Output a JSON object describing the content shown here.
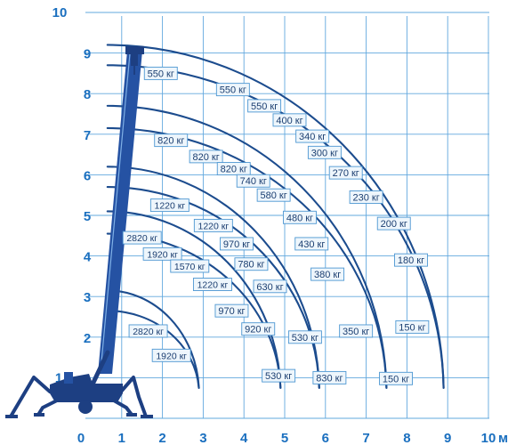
{
  "chart_data": {
    "type": "diagram",
    "x_axis": {
      "ticks": [
        "0",
        "1",
        "2",
        "3",
        "4",
        "5",
        "6",
        "7",
        "8",
        "9",
        "10"
      ],
      "unit": "м",
      "range": [
        0,
        10
      ]
    },
    "y_axis": {
      "ticks": [
        "1",
        "2",
        "3",
        "4",
        "5",
        "6",
        "7",
        "8",
        "9",
        "10"
      ],
      "range": [
        0,
        10
      ]
    },
    "envelopes": [
      {
        "reach": [
          0.65,
          3.15
        ],
        "base": 2.9
      },
      {
        "reach": [
          0.65,
          2.65
        ],
        "base": 2.9
      },
      {
        "reach": [
          0.65,
          4.55
        ],
        "base": 4.9
      },
      {
        "reach": [
          0.65,
          5.1
        ],
        "base": 4.9
      },
      {
        "reach": [
          0.65,
          5.7
        ],
        "base": 5.85
      },
      {
        "reach": [
          0.65,
          6.2
        ],
        "base": 5.85
      },
      {
        "reach": [
          0.65,
          7.15
        ],
        "base": 7.5
      },
      {
        "reach": [
          0.65,
          7.7
        ],
        "base": 7.5
      },
      {
        "reach": [
          0.65,
          8.7
        ],
        "base": 8.9
      },
      {
        "reach": [
          0.65,
          9.2
        ],
        "base": 8.9
      }
    ],
    "loads": [
      {
        "text": "550 кг",
        "x": 1.96,
        "y": 8.5
      },
      {
        "text": "550 кг",
        "x": 3.73,
        "y": 8.1
      },
      {
        "text": "550 кг",
        "x": 4.5,
        "y": 7.7
      },
      {
        "text": "400 кг",
        "x": 5.12,
        "y": 7.35
      },
      {
        "text": "340 кг",
        "x": 5.68,
        "y": 6.95
      },
      {
        "text": "300 кг",
        "x": 5.98,
        "y": 6.55
      },
      {
        "text": "820 кг",
        "x": 2.21,
        "y": 6.85
      },
      {
        "text": "820 кг",
        "x": 3.07,
        "y": 6.45
      },
      {
        "text": "820 кг",
        "x": 3.75,
        "y": 6.15
      },
      {
        "text": "740 кг",
        "x": 4.23,
        "y": 5.85
      },
      {
        "text": "580 кг",
        "x": 4.73,
        "y": 5.5
      },
      {
        "text": "270 кг",
        "x": 6.5,
        "y": 6.05
      },
      {
        "text": "230 кг",
        "x": 7.0,
        "y": 5.45
      },
      {
        "text": "1220 кг",
        "x": 2.18,
        "y": 5.25
      },
      {
        "text": "480 кг",
        "x": 5.37,
        "y": 4.95
      },
      {
        "text": "1220 кг",
        "x": 3.25,
        "y": 4.75
      },
      {
        "text": "200 кг",
        "x": 7.68,
        "y": 4.8
      },
      {
        "text": "970 кг",
        "x": 3.82,
        "y": 4.3
      },
      {
        "text": "430 кг",
        "x": 5.66,
        "y": 4.3
      },
      {
        "text": "2820 кг",
        "x": 1.5,
        "y": 4.45
      },
      {
        "text": "1920 кг",
        "x": 2.0,
        "y": 4.05
      },
      {
        "text": "1570 кг",
        "x": 2.67,
        "y": 3.75
      },
      {
        "text": "780 кг",
        "x": 4.18,
        "y": 3.8
      },
      {
        "text": "180 кг",
        "x": 8.1,
        "y": 3.9
      },
      {
        "text": "380 кг",
        "x": 6.05,
        "y": 3.55
      },
      {
        "text": "1220 кг",
        "x": 3.23,
        "y": 3.3
      },
      {
        "text": "630 кг",
        "x": 4.64,
        "y": 3.25
      },
      {
        "text": "970 кг",
        "x": 3.7,
        "y": 2.65
      },
      {
        "text": "920 кг",
        "x": 4.35,
        "y": 2.2
      },
      {
        "text": "530 кг",
        "x": 5.5,
        "y": 2.0
      },
      {
        "text": "350 кг",
        "x": 6.75,
        "y": 2.15
      },
      {
        "text": "150 кг",
        "x": 8.13,
        "y": 2.25
      },
      {
        "text": "2820 кг",
        "x": 1.65,
        "y": 2.15
      },
      {
        "text": "1920 кг",
        "x": 2.22,
        "y": 1.55
      },
      {
        "text": "530 кг",
        "x": 4.85,
        "y": 1.05
      },
      {
        "text": "830 кг",
        "x": 6.1,
        "y": 1.0
      },
      {
        "text": "150 кг",
        "x": 7.73,
        "y": 0.98
      }
    ]
  },
  "colors": {
    "grid": "#62a8de",
    "arc": "#1c4c8e",
    "tick_text": "#1a6fbf",
    "crane": "#1d3f82",
    "label_border": "#4d97d2"
  }
}
